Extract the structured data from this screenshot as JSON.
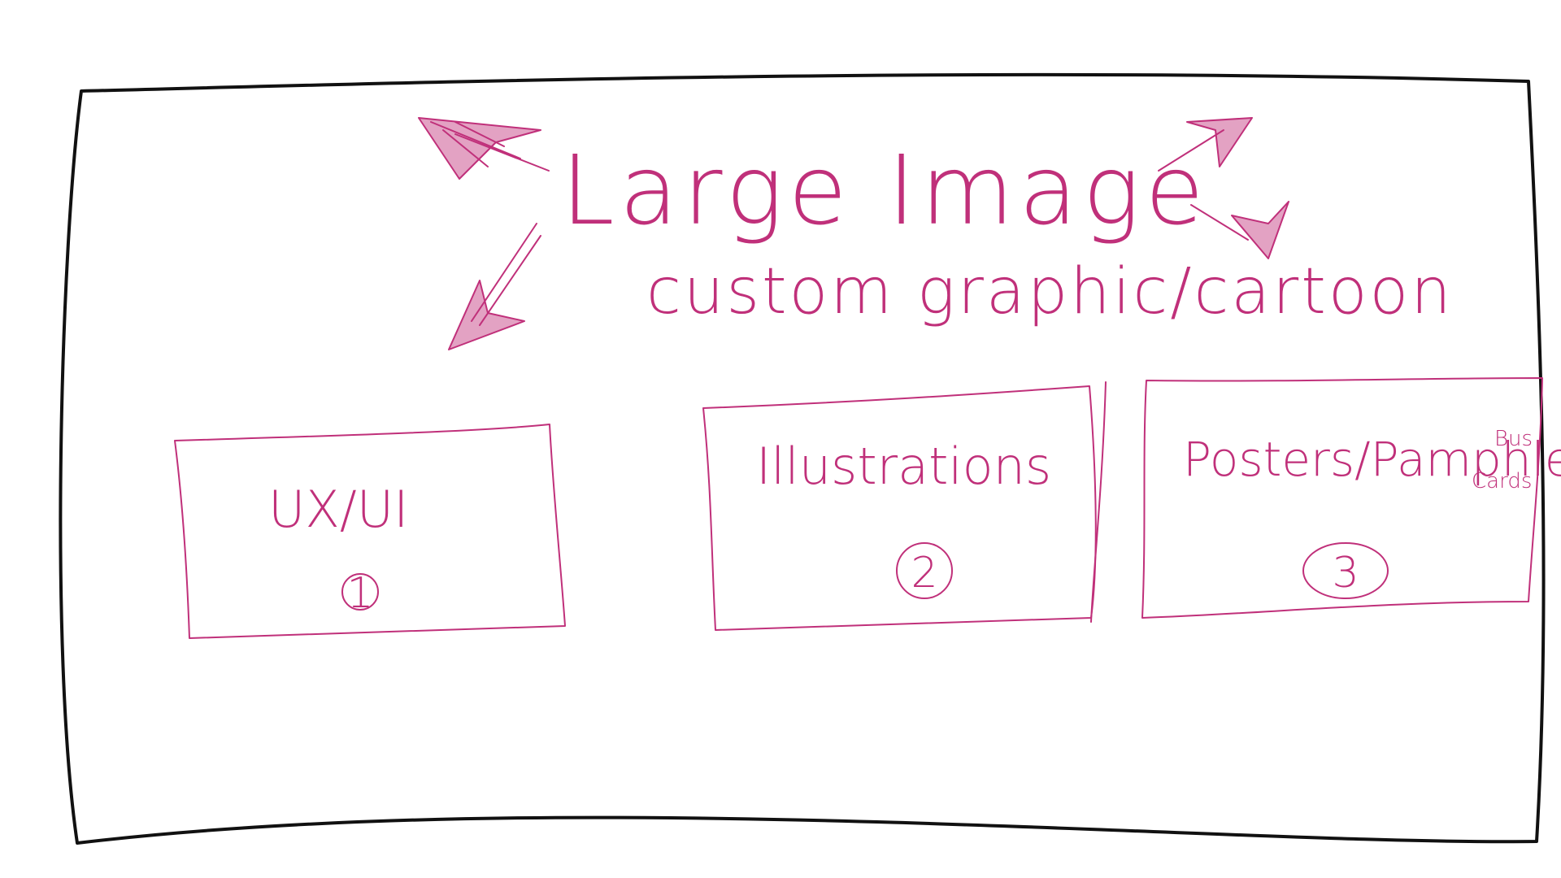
{
  "hero": {
    "title": "Large Image",
    "subtitle": "custom graphic/cartoon"
  },
  "cards": [
    {
      "label": "UX/UI",
      "number": "1"
    },
    {
      "label": "Illustrations",
      "number": "2"
    },
    {
      "label": "Posters/Pamphlets/",
      "note_line1": "Bus",
      "note_line2": "Cards",
      "number": "3"
    }
  ],
  "colors": {
    "ink": "#c0307a",
    "frame": "#111111",
    "background": "#ffffff"
  },
  "icons": [
    "arrow-up-left-icon",
    "arrow-up-right-icon",
    "arrow-down-left-icon",
    "arrow-down-right-icon"
  ]
}
